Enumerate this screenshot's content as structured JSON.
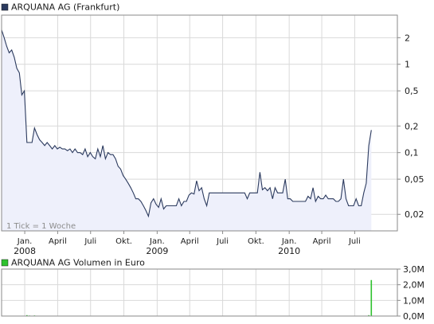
{
  "chart_data": [
    {
      "type": "area",
      "legend": "ARQUANA AG (Frankfurt)",
      "note": "1 Tick = 1 Woche",
      "y_scale": "log",
      "ylim": [
        0.013,
        3.6
      ],
      "yticks": [
        {
          "value": 2,
          "label": "2"
        },
        {
          "value": 1,
          "label": "1"
        },
        {
          "value": 0.5,
          "label": "0,5"
        },
        {
          "value": 0.2,
          "label": "0,2"
        },
        {
          "value": 0.1,
          "label": "0,1"
        },
        {
          "value": 0.05,
          "label": "0,05"
        },
        {
          "value": 0.02,
          "label": "0,02"
        }
      ],
      "xlim": [
        "2007-10-29",
        "2010-10-27"
      ],
      "xticks": [
        {
          "date": "2008-01-01",
          "label": "Jan.",
          "year": "2008"
        },
        {
          "date": "2008-04-01",
          "label": "April",
          "year": ""
        },
        {
          "date": "2008-07-01",
          "label": "Juli",
          "year": ""
        },
        {
          "date": "2008-10-01",
          "label": "Okt.",
          "year": ""
        },
        {
          "date": "2009-01-01",
          "label": "Jan.",
          "year": "2009"
        },
        {
          "date": "2009-04-01",
          "label": "April",
          "year": ""
        },
        {
          "date": "2009-07-01",
          "label": "Juli",
          "year": ""
        },
        {
          "date": "2009-10-01",
          "label": "Okt.",
          "year": ""
        },
        {
          "date": "2010-01-01",
          "label": "Jan.",
          "year": "2010"
        },
        {
          "date": "2010-04-01",
          "label": "April",
          "year": ""
        },
        {
          "date": "2010-07-01",
          "label": "Juli",
          "year": ""
        }
      ],
      "grid": true,
      "line_color": "#2b3a5e",
      "fill_color": "#eef0fb",
      "series": [
        {
          "points": [
            [
              "2007-10-29",
              2.45
            ],
            [
              "2007-11-05",
              2.0
            ],
            [
              "2007-11-12",
              1.6
            ],
            [
              "2007-11-19",
              1.35
            ],
            [
              "2007-11-26",
              1.45
            ],
            [
              "2007-12-03",
              1.2
            ],
            [
              "2007-12-10",
              0.9
            ],
            [
              "2007-12-17",
              0.8
            ],
            [
              "2007-12-24",
              0.45
            ],
            [
              "2007-12-31",
              0.5
            ],
            [
              "2008-01-07",
              0.13
            ],
            [
              "2008-01-14",
              0.13
            ],
            [
              "2008-01-21",
              0.13
            ],
            [
              "2008-01-28",
              0.19
            ],
            [
              "2008-02-04",
              0.16
            ],
            [
              "2008-02-11",
              0.14
            ],
            [
              "2008-02-18",
              0.13
            ],
            [
              "2008-02-25",
              0.12
            ],
            [
              "2008-03-03",
              0.13
            ],
            [
              "2008-03-10",
              0.12
            ],
            [
              "2008-03-17",
              0.11
            ],
            [
              "2008-03-24",
              0.12
            ],
            [
              "2008-03-31",
              0.11
            ],
            [
              "2008-04-07",
              0.115
            ],
            [
              "2008-04-14",
              0.11
            ],
            [
              "2008-04-21",
              0.11
            ],
            [
              "2008-04-28",
              0.105
            ],
            [
              "2008-05-05",
              0.11
            ],
            [
              "2008-05-12",
              0.1
            ],
            [
              "2008-05-19",
              0.11
            ],
            [
              "2008-05-26",
              0.1
            ],
            [
              "2008-06-02",
              0.1
            ],
            [
              "2008-06-09",
              0.095
            ],
            [
              "2008-06-16",
              0.11
            ],
            [
              "2008-06-23",
              0.09
            ],
            [
              "2008-06-30",
              0.1
            ],
            [
              "2008-07-07",
              0.09
            ],
            [
              "2008-07-14",
              0.085
            ],
            [
              "2008-07-21",
              0.11
            ],
            [
              "2008-07-28",
              0.09
            ],
            [
              "2008-08-04",
              0.12
            ],
            [
              "2008-08-11",
              0.085
            ],
            [
              "2008-08-18",
              0.1
            ],
            [
              "2008-08-25",
              0.095
            ],
            [
              "2008-09-01",
              0.095
            ],
            [
              "2008-09-08",
              0.085
            ],
            [
              "2008-09-15",
              0.07
            ],
            [
              "2008-09-22",
              0.065
            ],
            [
              "2008-09-29",
              0.055
            ],
            [
              "2008-10-06",
              0.05
            ],
            [
              "2008-10-13",
              0.045
            ],
            [
              "2008-10-20",
              0.04
            ],
            [
              "2008-10-27",
              0.035
            ],
            [
              "2008-11-03",
              0.03
            ],
            [
              "2008-11-10",
              0.03
            ],
            [
              "2008-11-17",
              0.028
            ],
            [
              "2008-11-24",
              0.025
            ],
            [
              "2008-12-01",
              0.022
            ],
            [
              "2008-12-08",
              0.019
            ],
            [
              "2008-12-15",
              0.027
            ],
            [
              "2008-12-22",
              0.03
            ],
            [
              "2008-12-29",
              0.026
            ],
            [
              "2009-01-05",
              0.024
            ],
            [
              "2009-01-12",
              0.03
            ],
            [
              "2009-01-19",
              0.023
            ],
            [
              "2009-01-26",
              0.025
            ],
            [
              "2009-02-02",
              0.025
            ],
            [
              "2009-02-09",
              0.025
            ],
            [
              "2009-02-16",
              0.025
            ],
            [
              "2009-02-23",
              0.025
            ],
            [
              "2009-03-02",
              0.03
            ],
            [
              "2009-03-09",
              0.025
            ],
            [
              "2009-03-16",
              0.028
            ],
            [
              "2009-03-23",
              0.028
            ],
            [
              "2009-03-30",
              0.033
            ],
            [
              "2009-04-06",
              0.035
            ],
            [
              "2009-04-13",
              0.034
            ],
            [
              "2009-04-20",
              0.048
            ],
            [
              "2009-04-27",
              0.037
            ],
            [
              "2009-05-04",
              0.04
            ],
            [
              "2009-05-11",
              0.03
            ],
            [
              "2009-05-18",
              0.025
            ],
            [
              "2009-05-25",
              0.035
            ],
            [
              "2009-06-01",
              0.035
            ],
            [
              "2009-06-08",
              0.035
            ],
            [
              "2009-06-15",
              0.035
            ],
            [
              "2009-06-22",
              0.035
            ],
            [
              "2009-06-29",
              0.035
            ],
            [
              "2009-07-06",
              0.035
            ],
            [
              "2009-07-13",
              0.035
            ],
            [
              "2009-07-20",
              0.035
            ],
            [
              "2009-07-27",
              0.035
            ],
            [
              "2009-08-03",
              0.035
            ],
            [
              "2009-08-10",
              0.035
            ],
            [
              "2009-08-17",
              0.035
            ],
            [
              "2009-08-24",
              0.035
            ],
            [
              "2009-08-31",
              0.035
            ],
            [
              "2009-09-07",
              0.03
            ],
            [
              "2009-09-14",
              0.035
            ],
            [
              "2009-09-21",
              0.035
            ],
            [
              "2009-09-28",
              0.035
            ],
            [
              "2009-10-05",
              0.035
            ],
            [
              "2009-10-12",
              0.06
            ],
            [
              "2009-10-19",
              0.038
            ],
            [
              "2009-10-26",
              0.04
            ],
            [
              "2009-11-02",
              0.037
            ],
            [
              "2009-11-09",
              0.04
            ],
            [
              "2009-11-16",
              0.03
            ],
            [
              "2009-11-23",
              0.04
            ],
            [
              "2009-11-30",
              0.035
            ],
            [
              "2009-12-07",
              0.035
            ],
            [
              "2009-12-14",
              0.035
            ],
            [
              "2009-12-21",
              0.05
            ],
            [
              "2009-12-28",
              0.03
            ],
            [
              "2010-01-04",
              0.03
            ],
            [
              "2010-01-11",
              0.028
            ],
            [
              "2010-01-18",
              0.028
            ],
            [
              "2010-01-25",
              0.028
            ],
            [
              "2010-02-01",
              0.028
            ],
            [
              "2010-02-08",
              0.028
            ],
            [
              "2010-02-15",
              0.028
            ],
            [
              "2010-02-22",
              0.032
            ],
            [
              "2010-03-01",
              0.03
            ],
            [
              "2010-03-08",
              0.04
            ],
            [
              "2010-03-15",
              0.028
            ],
            [
              "2010-03-22",
              0.032
            ],
            [
              "2010-03-29",
              0.03
            ],
            [
              "2010-04-05",
              0.03
            ],
            [
              "2010-04-12",
              0.033
            ],
            [
              "2010-04-19",
              0.03
            ],
            [
              "2010-04-26",
              0.03
            ],
            [
              "2010-05-03",
              0.03
            ],
            [
              "2010-05-10",
              0.028
            ],
            [
              "2010-05-17",
              0.028
            ],
            [
              "2010-05-24",
              0.03
            ],
            [
              "2010-05-31",
              0.05
            ],
            [
              "2010-06-07",
              0.03
            ],
            [
              "2010-06-14",
              0.025
            ],
            [
              "2010-06-21",
              0.025
            ],
            [
              "2010-06-28",
              0.025
            ],
            [
              "2010-07-05",
              0.03
            ],
            [
              "2010-07-12",
              0.025
            ],
            [
              "2010-07-19",
              0.025
            ],
            [
              "2010-07-26",
              0.035
            ],
            [
              "2010-08-02",
              0.045
            ],
            [
              "2010-08-09",
              0.12
            ],
            [
              "2010-08-16",
              0.18
            ]
          ]
        }
      ]
    },
    {
      "type": "bar",
      "legend": "ARQUANA AG Volumen in Euro",
      "ylim": [
        0,
        3000000
      ],
      "yticks": [
        {
          "value": 3000000,
          "label": "3,0M"
        },
        {
          "value": 2000000,
          "label": "2,0M"
        },
        {
          "value": 1000000,
          "label": "1,0M"
        },
        {
          "value": 0,
          "label": "0,0M"
        }
      ],
      "xlim": [
        "2007-10-29",
        "2010-10-27"
      ],
      "grid": true,
      "bar_color": "#2ec22e",
      "bars": [
        [
          "2007-11-12",
          25000
        ],
        [
          "2007-12-10",
          18000
        ],
        [
          "2008-01-07",
          60000
        ],
        [
          "2008-01-14",
          35000
        ],
        [
          "2008-01-28",
          40000
        ],
        [
          "2010-08-09",
          60000
        ],
        [
          "2010-08-16",
          2300000
        ]
      ]
    }
  ],
  "colors": {
    "price_legend_swatch": "#2b3a5e",
    "volume_legend_swatch": "#2ec22e",
    "grid": "#d9d9d9",
    "frame": "#8a8a8a",
    "text": "#1a1a1a",
    "note_text": "#8c8c8c"
  }
}
